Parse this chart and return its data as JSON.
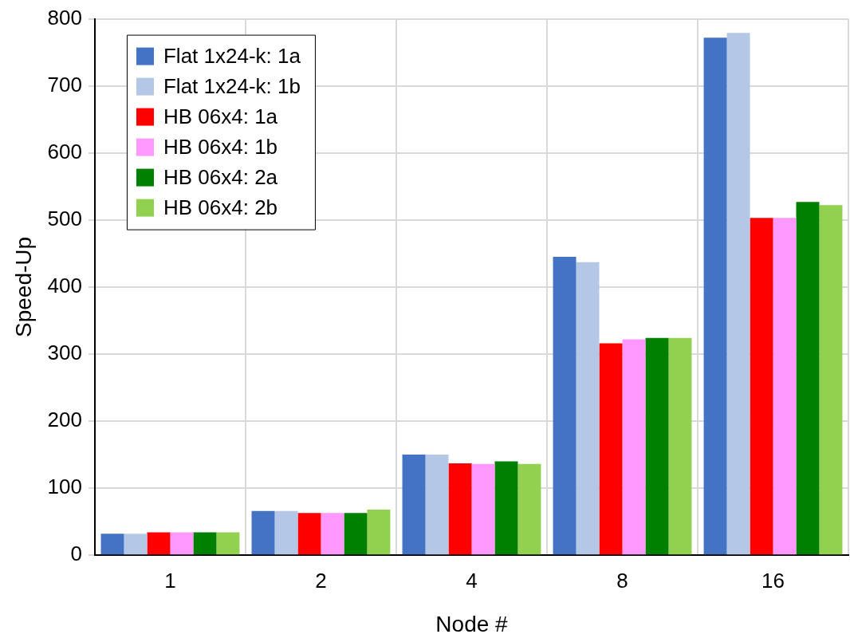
{
  "chart_data": {
    "type": "bar",
    "xlabel": "Node #",
    "ylabel": "Speed-Up",
    "categories": [
      "1",
      "2",
      "4",
      "8",
      "16"
    ],
    "series": [
      {
        "name": "Flat 1x24-k: 1a",
        "color": "#4472c4",
        "values": [
          32,
          66,
          150,
          445,
          772
        ]
      },
      {
        "name": "Flat 1x24-k: 1b",
        "color": "#b4c7e7",
        "values": [
          32,
          66,
          150,
          437,
          779
        ]
      },
      {
        "name": "HB 06x4: 1a",
        "color": "#ff0000",
        "values": [
          34,
          63,
          137,
          316,
          503
        ]
      },
      {
        "name": "HB 06x4: 1b",
        "color": "#ff99ff",
        "values": [
          34,
          63,
          136,
          322,
          503
        ]
      },
      {
        "name": "HB 06x4: 2a",
        "color": "#008000",
        "values": [
          34,
          63,
          140,
          324,
          527
        ]
      },
      {
        "name": "HB 06x4: 2b",
        "color": "#92d050",
        "values": [
          34,
          68,
          136,
          324,
          522
        ]
      }
    ],
    "ylim": [
      0,
      800
    ],
    "yticks": [
      0,
      100,
      200,
      300,
      400,
      500,
      600,
      700,
      800
    ],
    "grid": true,
    "legend": "top left"
  }
}
